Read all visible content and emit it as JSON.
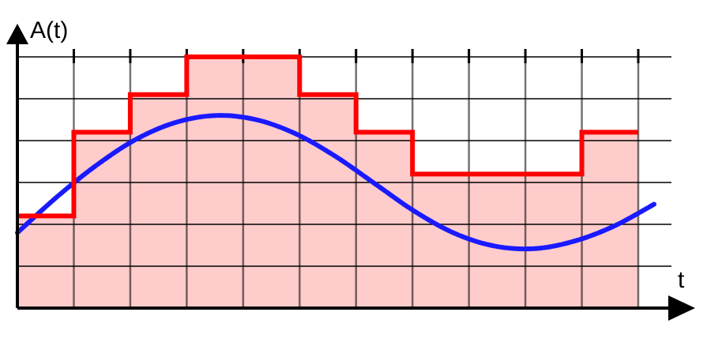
{
  "labels": {
    "y_axis": "A(t)",
    "x_axis": "t"
  },
  "colors": {
    "background": "#ffffff",
    "grid": "#000000",
    "axes": "#000000",
    "signal": "#1a1aff",
    "signal_over_fill": "#8a5cd6",
    "sampled": "#ff0000",
    "sampled_fill": "#ffcccc"
  },
  "chart_data": {
    "type": "line",
    "series": [
      {
        "values": [
          1.8,
          2.66,
          3.42,
          4.04,
          4.44,
          4.6,
          4.5,
          4.16,
          3.62,
          2.96,
          2.3,
          1.78,
          1.48,
          1.42,
          1.6,
          1.96,
          2.48
        ]
      },
      {
        "step_values": [
          2.2,
          4.2,
          5.1,
          6.0,
          6.0,
          5.1,
          4.2,
          3.2,
          3.2,
          3.2,
          4.2
        ]
      }
    ]
  }
}
